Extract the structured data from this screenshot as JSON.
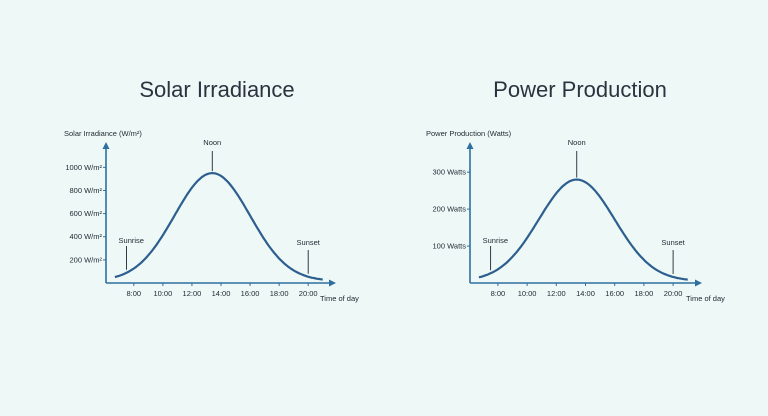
{
  "colors": {
    "background": "#eef8f6",
    "axis": "#2f6fa0",
    "curve": "#2c5f8f",
    "text": "#1f2733"
  },
  "chart_data": [
    {
      "type": "line",
      "title": "Solar Irradiance",
      "ylabel": "Solar Irradiance (W/m²)",
      "xlabel": "Time of day",
      "x_ticks": [
        "8:00",
        "10:00",
        "12:00",
        "14:00",
        "16:00",
        "18:00",
        "20:00"
      ],
      "y_ticks": [
        "200 W/m²",
        "400 W/m²",
        "600 W/m²",
        "800 W/m²",
        "1000 W/m²"
      ],
      "y_tick_values": [
        200,
        400,
        600,
        800,
        1000
      ],
      "ylim": [
        0,
        1150
      ],
      "xlim": [
        6.5,
        21.5
      ],
      "curve": {
        "shape": "gaussian",
        "peak_x": 13.4,
        "peak_y": 950,
        "sigma_hours": 2.6,
        "start_x": 6.7,
        "end_x": 21.0
      },
      "annotations": [
        {
          "text": "Sunrise",
          "x": 7.5
        },
        {
          "text": "Noon",
          "x": 13.4
        },
        {
          "text": "Sunset",
          "x": 20.0
        }
      ],
      "grid": false
    },
    {
      "type": "line",
      "title": "Power Production",
      "ylabel": "Power Production (Watts)",
      "xlabel": "Time of day",
      "x_ticks": [
        "8:00",
        "10:00",
        "12:00",
        "14:00",
        "16:00",
        "18:00",
        "20:00"
      ],
      "y_ticks": [
        "100 Watts",
        "200 Watts",
        "300 Watts"
      ],
      "y_tick_values": [
        100,
        200,
        300
      ],
      "ylim": [
        0,
        360
      ],
      "xlim": [
        6.5,
        21.5
      ],
      "curve": {
        "shape": "gaussian",
        "peak_x": 13.4,
        "peak_y": 280,
        "sigma_hours": 2.6,
        "start_x": 6.7,
        "end_x": 21.0
      },
      "annotations": [
        {
          "text": "Sunrise",
          "x": 7.5
        },
        {
          "text": "Noon",
          "x": 13.4
        },
        {
          "text": "Sunset",
          "x": 20.0
        }
      ],
      "grid": false
    }
  ]
}
